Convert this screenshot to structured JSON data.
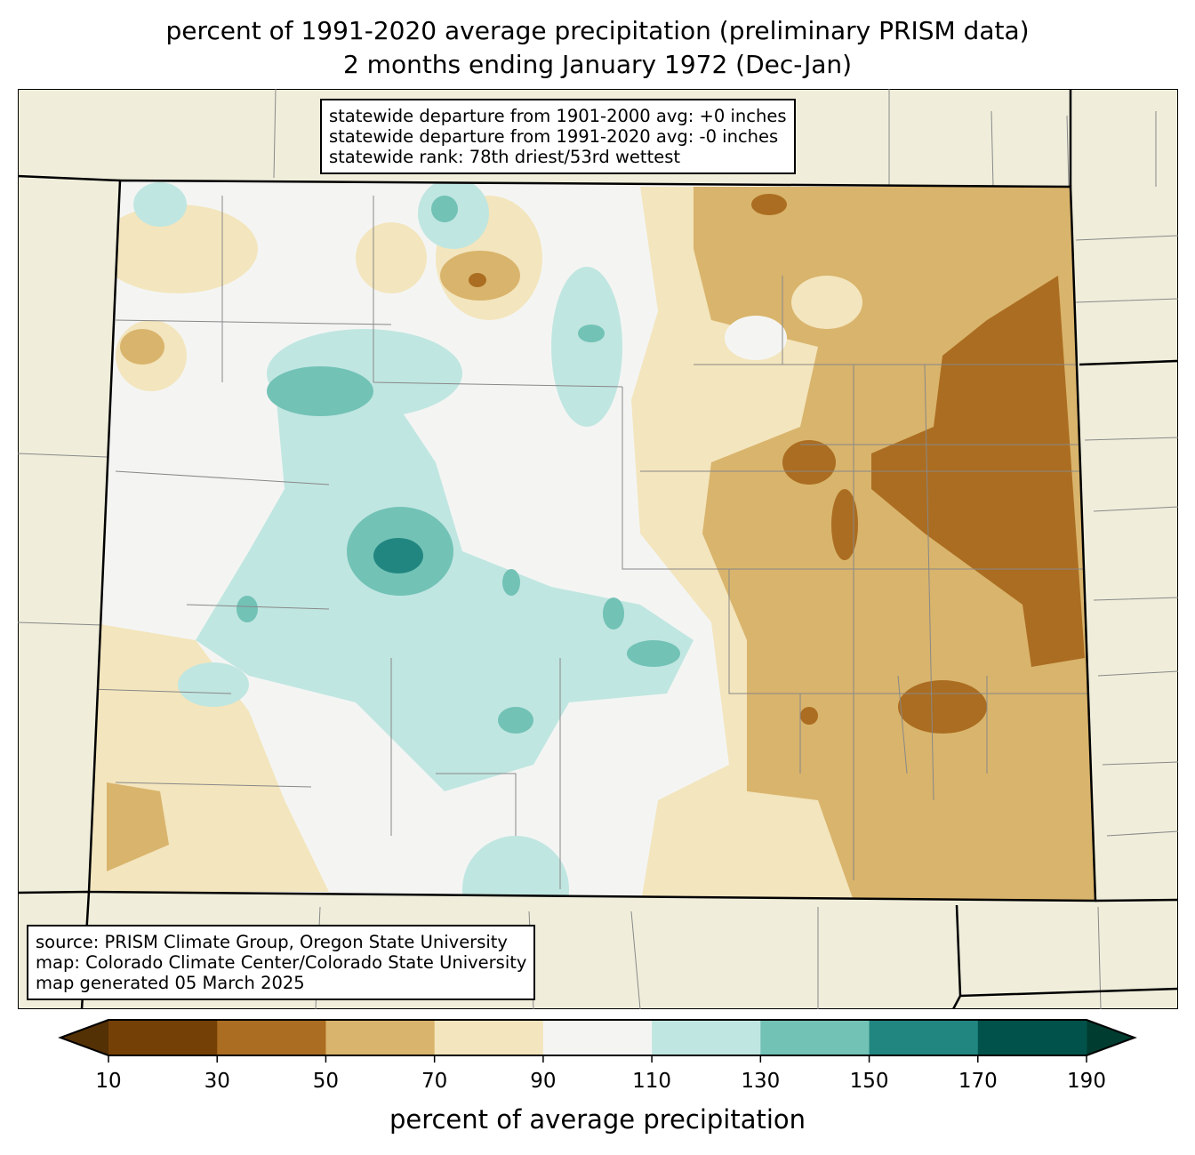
{
  "title": {
    "line1": "percent of 1991-2020 average precipitation (preliminary PRISM data)",
    "line2": "2 months ending January 1972 (Dec-Jan)"
  },
  "stats_box": {
    "line1": "statewide departure from 1901-2000 avg: +0 inches",
    "line2": "statewide departure from 1991-2020 avg: -0 inches",
    "line3": "statewide rank: 78th driest/53rd wettest"
  },
  "source_box": {
    "line1": "source: PRISM Climate Group, Oregon State University",
    "line2": "map: Colorado Climate Center/Colorado State University",
    "line3": "map generated 05 March 2025"
  },
  "colorbar": {
    "label": "percent of average precipitation",
    "ticks": [
      "10",
      "30",
      "50",
      "70",
      "90",
      "110",
      "130",
      "150",
      "170",
      "190"
    ],
    "colors": [
      "#744006",
      "#ab6d21",
      "#d9b46c",
      "#f3e5bd",
      "#f4f5f3",
      "#c0e6e1",
      "#72c2b6",
      "#228680",
      "#01524a"
    ],
    "extend_low_color": "#543005",
    "extend_high_color": "#003c30"
  }
}
